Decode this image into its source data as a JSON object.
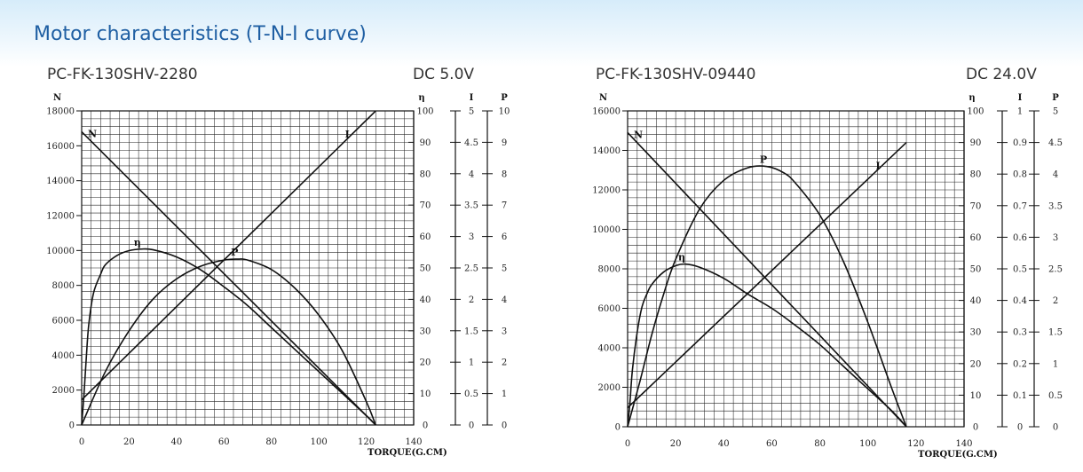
{
  "page": {
    "heading": "Motor characteristics (T-N-I curve)"
  },
  "charts": [
    {
      "model": "PC-FK-130SHV-2280",
      "voltage": "DC 5.0V"
    },
    {
      "model": "PC-FK-130SHV-09440",
      "voltage": "DC 24.0V"
    }
  ],
  "chart_data": [
    {
      "type": "line",
      "xlabel": "TORQUE(G.CM)",
      "xlim": [
        0,
        140
      ],
      "x_ticks": [
        0,
        20,
        40,
        60,
        80,
        100,
        120,
        140
      ],
      "ylabel": "N",
      "ylim": [
        0,
        18000
      ],
      "y_ticks": [
        0,
        2000,
        4000,
        6000,
        8000,
        10000,
        12000,
        14000,
        16000,
        18000
      ],
      "right_axes": [
        {
          "label": "η",
          "range": [
            0,
            100
          ],
          "ticks": [
            "0",
            "10",
            "20",
            "30",
            "40",
            "50",
            "60",
            "70",
            "80",
            "90",
            "100"
          ]
        },
        {
          "label": "I",
          "range": [
            0,
            5
          ],
          "ticks": [
            "0",
            "0.5",
            "1",
            "1.5",
            "2",
            "2.5",
            "3",
            "3.5",
            "4",
            "4.5",
            "5"
          ]
        },
        {
          "label": "P",
          "range": [
            0,
            10
          ],
          "ticks": [
            "0",
            "1",
            "2",
            "3",
            "4",
            "5",
            "6",
            "7",
            "8",
            "9",
            "10"
          ]
        }
      ],
      "series": [
        {
          "name": "N",
          "axis": "N",
          "x": [
            0,
            124
          ],
          "y": [
            16800,
            0
          ]
        },
        {
          "name": "I",
          "axis": "I",
          "x": [
            0,
            124
          ],
          "y": [
            0.4,
            5.0
          ]
        },
        {
          "name": "η",
          "axis": "η",
          "x": [
            0,
            1,
            2,
            3,
            5,
            8,
            10,
            15,
            20,
            25,
            30,
            40,
            50,
            60,
            70,
            80,
            90,
            100,
            110,
            120,
            124
          ],
          "y": [
            0,
            10,
            22,
            32,
            42,
            48,
            51,
            54,
            55.5,
            56,
            55.8,
            53.5,
            49.5,
            44,
            38,
            31,
            24,
            17,
            10,
            3,
            0
          ]
        },
        {
          "name": "P",
          "axis": "P",
          "x": [
            0,
            10,
            20,
            30,
            40,
            50,
            60,
            66,
            70,
            80,
            90,
            100,
            110,
            120,
            124
          ],
          "y": [
            0,
            1.7,
            3.0,
            4.0,
            4.65,
            5.05,
            5.25,
            5.28,
            5.25,
            4.95,
            4.35,
            3.5,
            2.35,
            0.75,
            0
          ]
        }
      ]
    },
    {
      "type": "line",
      "xlabel": "TORQUE(G.CM)",
      "xlim": [
        0,
        140
      ],
      "x_ticks": [
        0,
        20,
        40,
        60,
        80,
        100,
        120,
        140
      ],
      "ylabel": "N",
      "ylim": [
        0,
        16000
      ],
      "y_ticks": [
        0,
        2000,
        4000,
        6000,
        8000,
        10000,
        12000,
        14000,
        16000
      ],
      "right_axes": [
        {
          "label": "η",
          "range": [
            0,
            100
          ],
          "ticks": [
            "0",
            "10",
            "20",
            "30",
            "40",
            "50",
            "60",
            "70",
            "80",
            "90",
            "100"
          ]
        },
        {
          "label": "I",
          "range": [
            0,
            1
          ],
          "ticks": [
            "0",
            "0.1",
            "0.2",
            "0.3",
            "0.4",
            "0.5",
            "0.6",
            "0.7",
            "0.8",
            "0.9",
            "1"
          ]
        },
        {
          "label": "P",
          "range": [
            0,
            5
          ],
          "ticks": [
            "0",
            "0.5",
            "1",
            "1.5",
            "2",
            "2.5",
            "3",
            "3.5",
            "4",
            "4.5",
            "5"
          ]
        }
      ],
      "series": [
        {
          "name": "N",
          "axis": "N",
          "x": [
            0,
            116
          ],
          "y": [
            14900,
            0
          ]
        },
        {
          "name": "I",
          "axis": "I",
          "x": [
            0,
            116
          ],
          "y": [
            0.06,
            0.9
          ]
        },
        {
          "name": "η",
          "axis": "η",
          "x": [
            0,
            1,
            2,
            4,
            6,
            8,
            10,
            15,
            20,
            24,
            30,
            40,
            50,
            60,
            70,
            80,
            90,
            100,
            110,
            116
          ],
          "y": [
            0,
            8,
            18,
            30,
            38,
            42,
            45,
            49,
            51,
            51.5,
            50.5,
            47,
            42,
            37.5,
            32,
            26,
            19,
            12,
            5,
            0
          ]
        },
        {
          "name": "P",
          "axis": "P",
          "x": [
            0,
            5,
            10,
            15,
            20,
            30,
            40,
            50,
            58,
            65,
            70,
            80,
            90,
            100,
            110,
            116
          ],
          "y": [
            0,
            0.7,
            1.45,
            2.1,
            2.65,
            3.45,
            3.9,
            4.1,
            4.12,
            4.02,
            3.85,
            3.35,
            2.6,
            1.65,
            0.6,
            0
          ]
        }
      ]
    }
  ]
}
